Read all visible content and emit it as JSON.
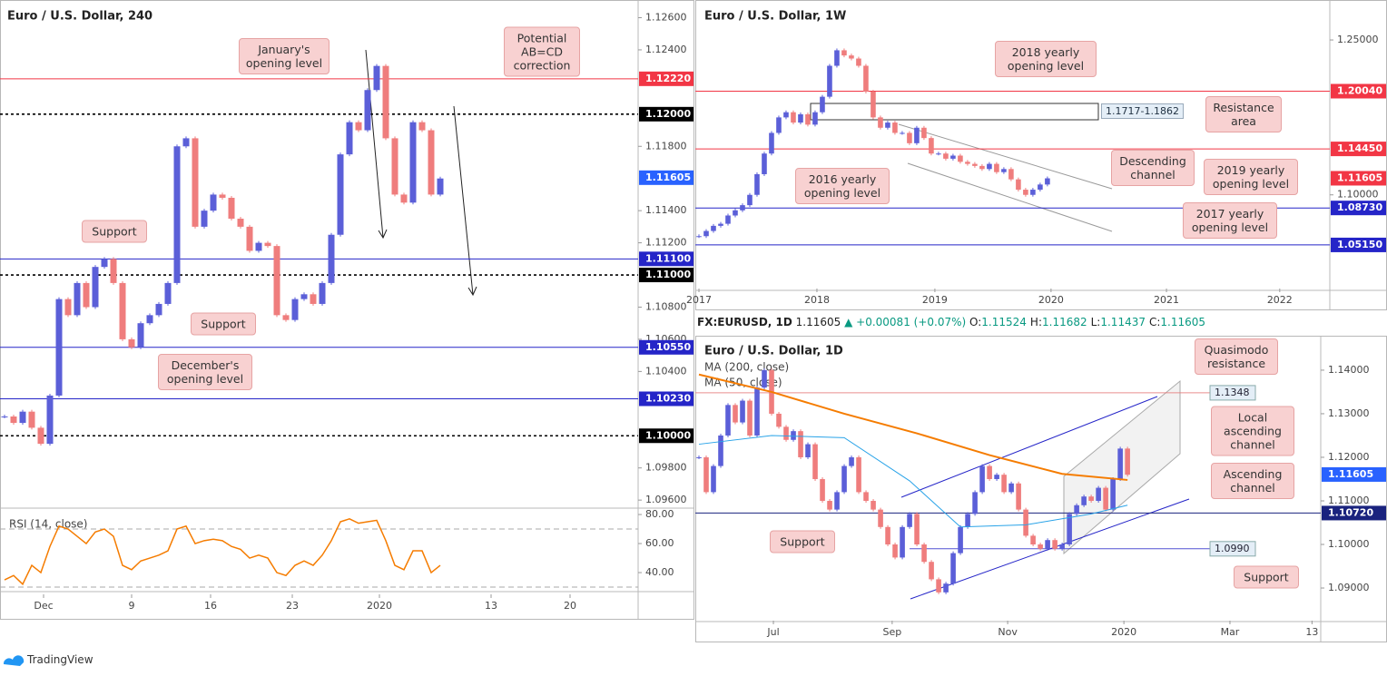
{
  "chart_data": [
    {
      "type": "candlestick",
      "title": "Euro / U.S. Dollar, 240",
      "up_color": "#5b5fd8",
      "down_color": "#ef7d7d",
      "values": [
        1.1012,
        1.1008,
        1.1015,
        1.1005,
        1.0995,
        1.1025,
        1.1085,
        1.1075,
        1.1095,
        1.108,
        1.1105,
        1.111,
        1.1095,
        1.106,
        1.1055,
        1.107,
        1.1075,
        1.1082,
        1.1095,
        1.118,
        1.1185,
        1.113,
        1.114,
        1.115,
        1.1148,
        1.1135,
        1.113,
        1.1115,
        1.112,
        1.1118,
        1.1075,
        1.1072,
        1.1085,
        1.1088,
        1.1082,
        1.1095,
        1.1125,
        1.1175,
        1.1195,
        1.119,
        1.1215,
        1.123,
        1.1185,
        1.115,
        1.1145,
        1.1195,
        1.119,
        1.115,
        1.116
      ],
      "xlim": [
        -0.5,
        69.8
      ],
      "ylim": [
        1.0955,
        1.1271
      ],
      "yticks": [
        {
          "value": 1.126,
          "label": "1.12600"
        },
        {
          "value": 1.124,
          "label": "1.12400"
        },
        {
          "value": 1.118,
          "label": "1.11800"
        },
        {
          "value": 1.114,
          "label": "1.11400"
        },
        {
          "value": 1.112,
          "label": "1.11200"
        },
        {
          "value": 1.108,
          "label": "1.10800"
        },
        {
          "value": 1.106,
          "label": "1.10600"
        },
        {
          "value": 1.104,
          "label": "1.10400"
        },
        {
          "value": 1.098,
          "label": "1.09800"
        },
        {
          "value": 1.096,
          "label": "1.09600"
        }
      ],
      "xticks": [
        {
          "value": 4.3,
          "label": "Dec"
        },
        {
          "value": 14,
          "label": "9"
        },
        {
          "value": 22.7,
          "label": "16"
        },
        {
          "value": 31.7,
          "label": "23"
        },
        {
          "value": 41.3,
          "label": "2020"
        },
        {
          "value": 53.6,
          "label": "13"
        },
        {
          "value": 62.3,
          "label": "20"
        }
      ],
      "levels": [
        {
          "value": 1.1222,
          "label": "1.12220",
          "color": "#f23645",
          "line": "solid"
        },
        {
          "value": 1.12,
          "label": "1.12000",
          "color": "#000000",
          "line": "dotted"
        },
        {
          "value": 1.11605,
          "label": "1.11605",
          "color": "#2962ff",
          "line": "none"
        },
        {
          "value": 1.111,
          "label": "1.11100",
          "color": "#2525c8",
          "line": "solid"
        },
        {
          "value": 1.11,
          "label": "1.11000",
          "color": "#000000",
          "line": "dotted"
        },
        {
          "value": 1.1055,
          "label": "1.10550",
          "color": "#2525c8",
          "line": "solid"
        },
        {
          "value": 1.1023,
          "label": "1.10230",
          "color": "#2525c8",
          "line": "solid"
        },
        {
          "value": 1.1,
          "label": "1.10000",
          "color": "#000000",
          "line": "dotted"
        }
      ],
      "annotations": [
        "January's opening level",
        "Potential AB=CD correction",
        "Support",
        "Support",
        "December's opening level"
      ],
      "rsi": {
        "label": "RSI (14, close)",
        "color": "#f57c00",
        "values": [
          35,
          38,
          32,
          45,
          40,
          58,
          72,
          70,
          65,
          60,
          68,
          70,
          65,
          45,
          42,
          48,
          50,
          52,
          55,
          70,
          72,
          60,
          62,
          63,
          62,
          58,
          56,
          50,
          52,
          50,
          40,
          38,
          45,
          48,
          45,
          52,
          62,
          75,
          77,
          74,
          75,
          76,
          62,
          45,
          42,
          55,
          55,
          40,
          45
        ],
        "ylim": [
          26.9,
          84.4
        ],
        "yticks": [
          {
            "value": 80,
            "label": "80.00"
          },
          {
            "value": 60,
            "label": "60.00"
          },
          {
            "value": 40,
            "label": "40.00"
          }
        ],
        "levels": [
          70,
          30
        ]
      }
    },
    {
      "type": "candlestick",
      "title": "Euro / U.S. Dollar, 1W",
      "up_color": "#5b5fd8",
      "down_color": "#ef7d7d",
      "values": [
        1.06,
        1.065,
        1.07,
        1.072,
        1.08,
        1.085,
        1.09,
        1.1,
        1.12,
        1.14,
        1.16,
        1.175,
        1.18,
        1.17,
        1.178,
        1.168,
        1.18,
        1.195,
        1.225,
        1.24,
        1.235,
        1.232,
        1.225,
        1.2,
        1.175,
        1.165,
        1.17,
        1.16,
        1.16,
        1.15,
        1.165,
        1.155,
        1.14,
        1.14,
        1.135,
        1.138,
        1.132,
        1.13,
        1.128,
        1.125,
        1.13,
        1.122,
        1.125,
        1.115,
        1.105,
        1.1,
        1.105,
        1.11,
        1.116
      ],
      "xlim": [
        -0.5,
        86.9
      ],
      "ylim": [
        1.0075,
        1.2887
      ],
      "yticks": [
        {
          "value": 1.25,
          "label": "1.25000"
        },
        {
          "value": 1.1,
          "label": "1.10000"
        }
      ],
      "xticks": [
        {
          "value": 0,
          "label": "2017"
        },
        {
          "value": 16.25,
          "label": "2018"
        },
        {
          "value": 32.5,
          "label": "2019"
        },
        {
          "value": 48.5,
          "label": "2020"
        },
        {
          "value": 64.4,
          "label": "2021"
        },
        {
          "value": 80,
          "label": "2022"
        }
      ],
      "levels": [
        {
          "value": 1.2004,
          "label": "1.20040",
          "color": "#f23645",
          "line": "solid"
        },
        {
          "value": 1.1445,
          "label": "1.14450",
          "color": "#f23645",
          "line": "solid"
        },
        {
          "value": 1.11605,
          "label": "1.11605",
          "color": "#f23645",
          "line": "none"
        },
        {
          "value": 1.0873,
          "label": "1.08730",
          "color": "#2525c8",
          "line": "solid"
        },
        {
          "value": 1.0515,
          "label": "1.05150",
          "color": "#2525c8",
          "line": "solid"
        }
      ],
      "range_label": "1.1717-1.1862",
      "annotations": [
        "2018 yearly opening level",
        "Resistance area",
        "Descending channel",
        "2019 yearly opening level",
        "2016 yearly opening level",
        "2017 yearly opening level"
      ]
    },
    {
      "type": "candlestick",
      "title": "Euro / U.S. Dollar, 1D",
      "up_color": "#5b5fd8",
      "down_color": "#ef7d7d",
      "values": [
        1.12,
        1.112,
        1.118,
        1.125,
        1.132,
        1.128,
        1.133,
        1.125,
        1.136,
        1.14,
        1.13,
        1.127,
        1.124,
        1.126,
        1.12,
        1.123,
        1.115,
        1.11,
        1.108,
        1.112,
        1.118,
        1.12,
        1.112,
        1.11,
        1.108,
        1.104,
        1.1,
        1.097,
        1.104,
        1.107,
        1.1,
        1.096,
        1.092,
        1.089,
        1.091,
        1.098,
        1.104,
        1.107,
        1.112,
        1.118,
        1.115,
        1.116,
        1.112,
        1.114,
        1.108,
        1.102,
        1.1,
        1.099,
        1.101,
        1.099,
        1.1,
        1.107,
        1.109,
        1.111,
        1.11,
        1.113,
        1.108,
        1.115,
        1.122,
        1.116
      ],
      "xlim": [
        -0.5,
        85.6
      ],
      "ylim": [
        1.0823,
        1.1479
      ],
      "yticks": [
        {
          "value": 1.14,
          "label": "1.14000"
        },
        {
          "value": 1.13,
          "label": "1.13000"
        },
        {
          "value": 1.12,
          "label": "1.12000"
        },
        {
          "value": 1.11,
          "label": "1.11000"
        },
        {
          "value": 1.1,
          "label": "1.10000"
        },
        {
          "value": 1.09,
          "label": "1.09000"
        }
      ],
      "xticks": [
        {
          "value": 10.25,
          "label": "Jul"
        },
        {
          "value": 26.6,
          "label": "Sep"
        },
        {
          "value": 42.5,
          "label": "Nov"
        },
        {
          "value": 58.5,
          "label": "2020"
        },
        {
          "value": 73.1,
          "label": "Mar"
        },
        {
          "value": 84.4,
          "label": "13"
        }
      ],
      "levels": [
        {
          "value": 1.1348,
          "label": "1.1348",
          "color": "#e57373",
          "line": "box"
        },
        {
          "value": 1.11605,
          "label": "1.11605",
          "color": "#2962ff",
          "line": "none"
        },
        {
          "value": 1.1072,
          "label": "1.10720",
          "color": "#1a237e",
          "line": "solid"
        },
        {
          "value": 1.099,
          "label": "1.0990",
          "color": "#2525c8",
          "line": "box"
        }
      ],
      "ma_series": [
        {
          "name": "MA (200, close)",
          "color": "#f57c00",
          "x": [
            0,
            10,
            20,
            30,
            40,
            50,
            59
          ],
          "values": [
            1.139,
            1.135,
            1.13,
            1.1255,
            1.1205,
            1.1162,
            1.1148
          ]
        },
        {
          "name": "MA (50, close)",
          "color": "#29a3e8",
          "x": [
            0,
            10,
            20,
            29,
            36,
            45,
            54,
            59
          ],
          "values": [
            1.123,
            1.125,
            1.1245,
            1.1146,
            1.104,
            1.1045,
            1.107,
            1.109
          ]
        }
      ],
      "annotations": [
        "Quasimodo resistance",
        "Local ascending channel",
        "Ascending channel",
        "Support",
        "Support"
      ]
    }
  ],
  "info": {
    "symbol": "FX:EURUSD, 1D",
    "price": "1.11605",
    "change": "▲ +0.00081 (+0.07%)",
    "ohlc": [
      {
        "label": "O:",
        "value": "1.11524"
      },
      {
        "label": "H:",
        "value": "1.11682"
      },
      {
        "label": "L:",
        "value": "1.11437"
      },
      {
        "label": "C:",
        "value": "1.11605"
      }
    ]
  },
  "brand": "TradingView"
}
